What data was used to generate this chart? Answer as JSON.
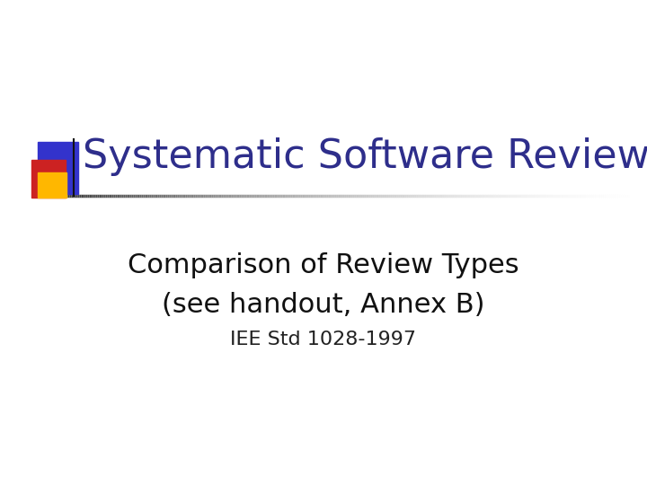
{
  "title": "Systematic Software Reviews",
  "subtitle_line1": "Comparison of Review Types",
  "subtitle_line2": "(see handout, Annex B)",
  "subtitle_line3": "IEE Std 1028-1997",
  "title_color": "#2E2E8B",
  "subtitle_color": "#111111",
  "subtitle3_color": "#222222",
  "bg_color": "#ffffff",
  "title_fontsize": 32,
  "subtitle_fontsize": 22,
  "subtitle3_fontsize": 16,
  "square1_color": "#3333CC",
  "square2_color": "#CC2222",
  "square3_color": "#FFB700"
}
